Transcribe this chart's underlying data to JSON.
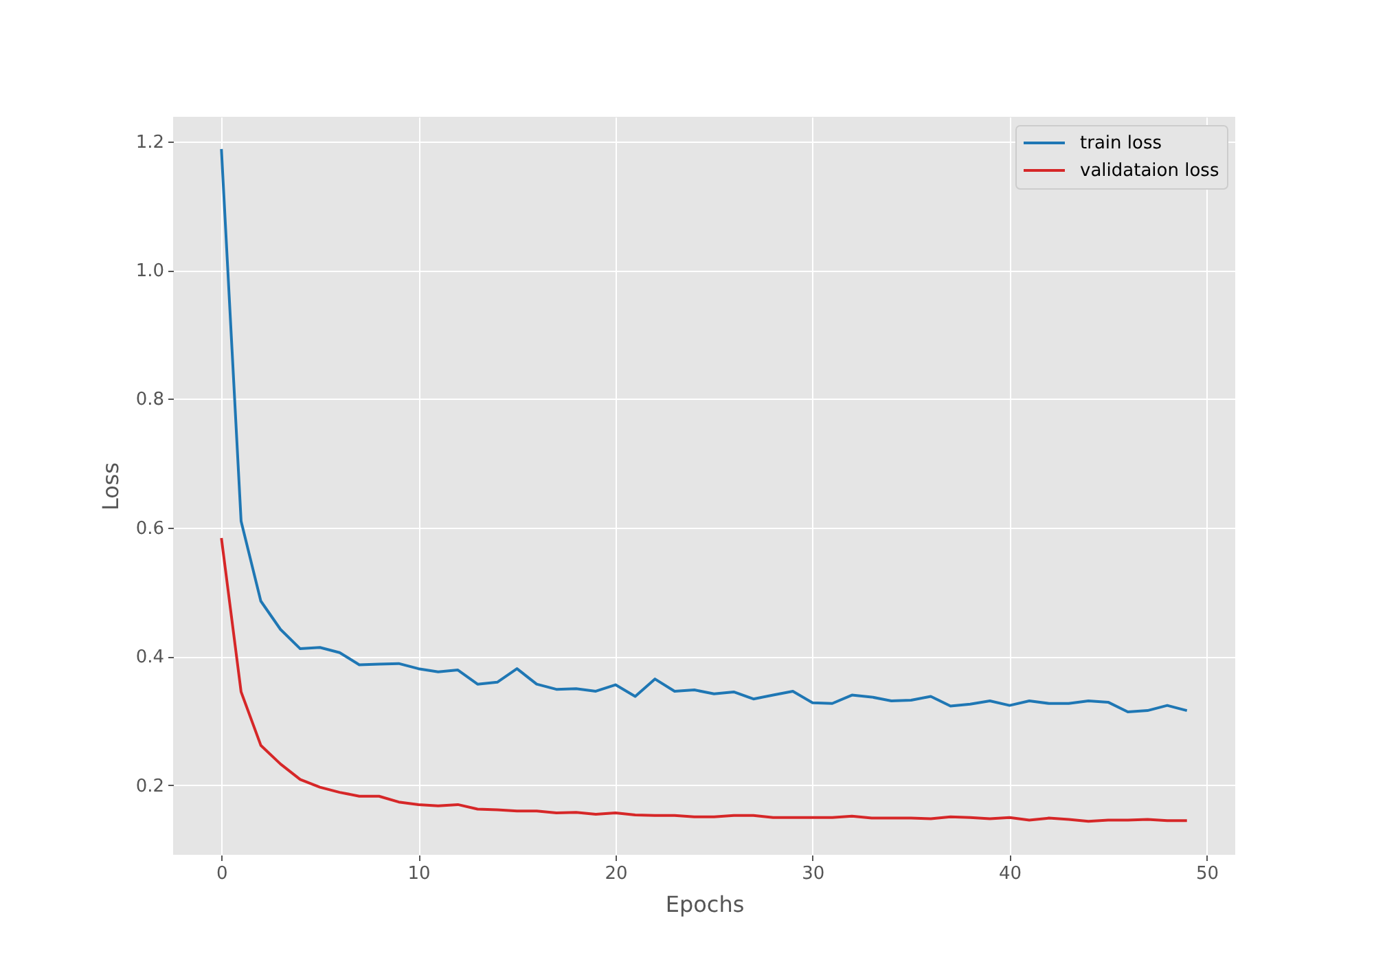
{
  "chart_data": {
    "type": "line",
    "xlabel": "Epochs",
    "ylabel": "Loss",
    "x": [
      0,
      1,
      2,
      3,
      4,
      5,
      6,
      7,
      8,
      9,
      10,
      11,
      12,
      13,
      14,
      15,
      16,
      17,
      18,
      19,
      20,
      21,
      22,
      23,
      24,
      25,
      26,
      27,
      28,
      29,
      30,
      31,
      32,
      33,
      34,
      35,
      36,
      37,
      38,
      39,
      40,
      41,
      42,
      43,
      44,
      45,
      46,
      47,
      48,
      49
    ],
    "series": [
      {
        "name": "train loss",
        "color": "#1f77b4",
        "values": [
          1.188,
          0.61,
          0.486,
          0.442,
          0.412,
          0.414,
          0.406,
          0.387,
          0.388,
          0.389,
          0.381,
          0.376,
          0.379,
          0.357,
          0.36,
          0.381,
          0.357,
          0.349,
          0.35,
          0.346,
          0.356,
          0.338,
          0.365,
          0.346,
          0.348,
          0.342,
          0.345,
          0.334,
          0.34,
          0.346,
          0.328,
          0.327,
          0.34,
          0.337,
          0.331,
          0.332,
          0.338,
          0.323,
          0.326,
          0.331,
          0.324,
          0.331,
          0.327,
          0.327,
          0.331,
          0.329,
          0.314,
          0.316,
          0.324,
          0.316
        ]
      },
      {
        "name": "validataion loss",
        "color": "#d62728",
        "values": [
          0.584,
          0.345,
          0.262,
          0.233,
          0.209,
          0.197,
          0.189,
          0.183,
          0.183,
          0.174,
          0.17,
          0.168,
          0.17,
          0.163,
          0.162,
          0.16,
          0.16,
          0.157,
          0.158,
          0.155,
          0.157,
          0.154,
          0.153,
          0.153,
          0.151,
          0.151,
          0.153,
          0.153,
          0.15,
          0.15,
          0.15,
          0.15,
          0.152,
          0.149,
          0.149,
          0.149,
          0.148,
          0.151,
          0.15,
          0.148,
          0.15,
          0.146,
          0.149,
          0.147,
          0.144,
          0.146,
          0.146,
          0.147,
          0.145,
          0.145
        ]
      }
    ],
    "xlim": [
      -2.45,
      51.45
    ],
    "ylim": [
      0.092,
      1.238
    ],
    "xticks": [
      0,
      10,
      20,
      30,
      40,
      50
    ],
    "yticks": [
      0.2,
      0.4,
      0.6,
      0.8,
      {
        "value": 1.0,
        "label": "1.0"
      },
      1.2
    ],
    "grid": true,
    "legend": "top right"
  }
}
